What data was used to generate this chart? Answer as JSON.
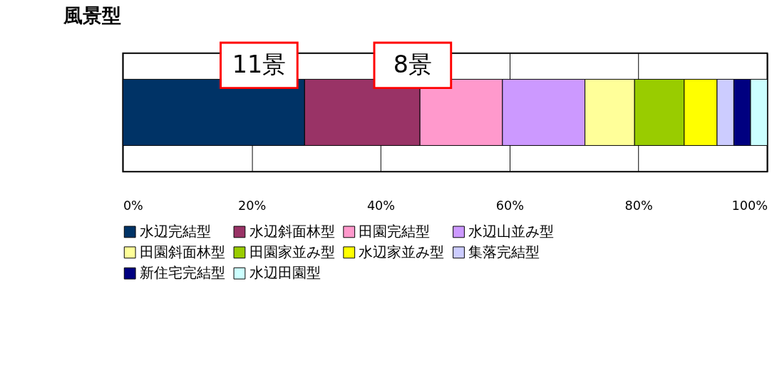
{
  "chart_data": {
    "type": "bar",
    "title": "風景型",
    "orientation": "horizontal",
    "stacked": true,
    "categories": [
      null
    ],
    "series": [
      {
        "name": "水辺完結型",
        "color": "#003366",
        "values": [
          28.2
        ]
      },
      {
        "name": "水辺斜面林型",
        "color": "#993366",
        "values": [
          17.9
        ]
      },
      {
        "name": "田園完結型",
        "color": "#ff99cc",
        "values": [
          12.8
        ]
      },
      {
        "name": "水辺山並み型",
        "color": "#cc99ff",
        "values": [
          12.8
        ]
      },
      {
        "name": "田園斜面林型",
        "color": "#ffff99",
        "values": [
          7.7
        ]
      },
      {
        "name": "田園家並み型",
        "color": "#99cc00",
        "values": [
          7.7
        ]
      },
      {
        "name": "水辺家並み型",
        "color": "#ffff00",
        "values": [
          5.1
        ]
      },
      {
        "name": "集落完結型",
        "color": "#ccccff",
        "values": [
          2.6
        ]
      },
      {
        "name": "新住宅完結型",
        "color": "#000080",
        "values": [
          2.6
        ]
      },
      {
        "name": "水辺田園型",
        "color": "#ccffff",
        "values": [
          2.6
        ]
      }
    ],
    "xlim": [
      0,
      100
    ],
    "xticks": [
      {
        "value": 0,
        "label": "0%"
      },
      {
        "value": 20,
        "label": "20%"
      },
      {
        "value": 40,
        "label": "40%"
      },
      {
        "value": 60,
        "label": "60%"
      },
      {
        "value": 80,
        "label": "80%"
      },
      {
        "value": 100,
        "label": "100%"
      }
    ],
    "grid": "x",
    "legend": "bottom",
    "annotations": [
      "11景",
      "8景"
    ]
  }
}
